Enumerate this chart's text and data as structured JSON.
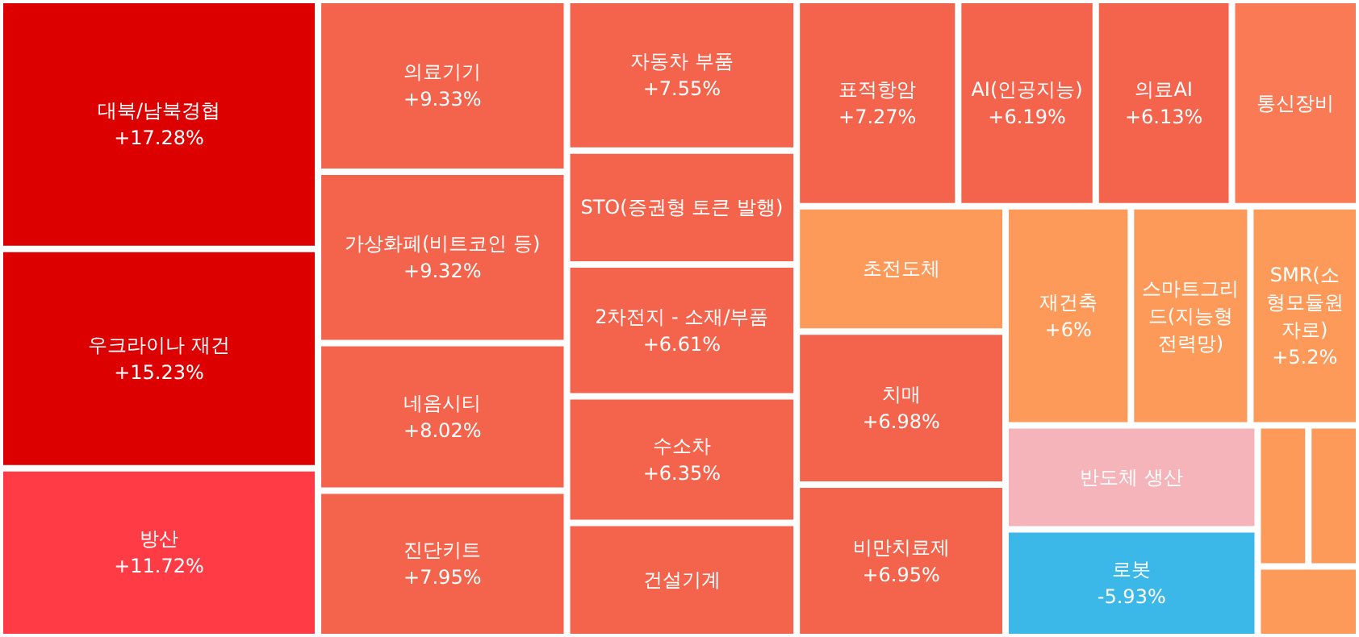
{
  "chart_data": {
    "type": "other",
    "categories": [
      "대북/남북경협",
      "우크라이나 재건",
      "방산",
      "의료기기",
      "가상화폐(비트코인 등)",
      "네옴시티",
      "진단키트",
      "자동차 부품",
      "STO(증권형 토큰 발행)",
      "2차전지 - 소재/부품",
      "수소차",
      "건설기계",
      "표적항암",
      "AI(인공지능)",
      "의료AI",
      "통신장비",
      "초전도체",
      "치매",
      "비만치료제",
      "재건축",
      "스마트그리드(지능형전력망)",
      "SMR(소형모듈원자로)",
      "반도체 생산",
      "로봇",
      null,
      null,
      null
    ],
    "values": [
      17.28,
      15.23,
      11.72,
      9.33,
      9.32,
      8.02,
      7.95,
      7.55,
      null,
      6.61,
      6.35,
      null,
      7.27,
      6.19,
      6.13,
      null,
      null,
      6.98,
      6.95,
      6,
      null,
      5.2,
      null,
      -5.93,
      null,
      null,
      null
    ],
    "value_labels": [
      "+17.28%",
      "+15.23%",
      "+11.72%",
      "+9.33%",
      "+9.32%",
      "+8.02%",
      "+7.95%",
      "+7.55%",
      null,
      "+6.61%",
      "+6.35%",
      null,
      "+7.27%",
      "+6.19%",
      "+6.13%",
      null,
      null,
      "+6.98%",
      "+6.95%",
      "+6%",
      null,
      "+5.2%",
      null,
      "-5.93%",
      null,
      null,
      null
    ],
    "colors": [
      "#dd0000",
      "#dd0000",
      "#ff3b45",
      "#f4644c",
      "#f4644c",
      "#f4644c",
      "#f4644c",
      "#f4644c",
      "#f4644c",
      "#f4644c",
      "#f4644c",
      "#f4644c",
      "#f4644c",
      "#f4644c",
      "#f4644c",
      "#f97a55",
      "#fd9a5a",
      "#f4644c",
      "#f4644c",
      "#fd9a5a",
      "#fd9a5a",
      "#fd9a5a",
      "#f5b4ba",
      "#3bb8e8",
      "#fd9a5a",
      "#fd9a5a",
      "#fd9a5a"
    ]
  }
}
